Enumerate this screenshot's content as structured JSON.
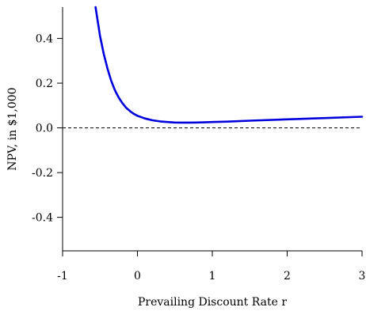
{
  "chart_data": {
    "type": "line",
    "title": "",
    "xlabel": "Prevailing Discount Rate r",
    "ylabel": "NPV, in $1,000",
    "xlim": [
      -1,
      3
    ],
    "ylim": [
      -0.55,
      0.54
    ],
    "xticks": [
      "-1",
      "0",
      "1",
      "2",
      "3"
    ],
    "xtick_values": [
      -1,
      0,
      1,
      2,
      3
    ],
    "yticks": [
      "-0.4",
      "-0.2",
      "0.0",
      "0.2",
      "0.4"
    ],
    "ytick_values": [
      -0.4,
      -0.2,
      0.0,
      0.2,
      0.4
    ],
    "reference_line": {
      "y": 0,
      "style": "dashed"
    },
    "color": "#0000dd",
    "grid": false,
    "legend": "none",
    "series": [
      {
        "x": [
          -0.56,
          -0.5,
          -0.45,
          -0.4,
          -0.35,
          -0.3,
          -0.25,
          -0.2,
          -0.15,
          -0.1,
          -0.05,
          0.0,
          0.1,
          0.2,
          0.3,
          0.4,
          0.5,
          0.6,
          0.7,
          0.8,
          1.0,
          1.2,
          1.5,
          2.0,
          2.5,
          3.0
        ],
        "y": [
          0.54,
          0.41,
          0.33,
          0.265,
          0.21,
          0.168,
          0.135,
          0.11,
          0.09,
          0.075,
          0.063,
          0.054,
          0.042,
          0.034,
          0.029,
          0.026,
          0.024,
          0.0235,
          0.0237,
          0.024,
          0.026,
          0.028,
          0.032,
          0.038,
          0.044,
          0.05
        ]
      }
    ]
  }
}
